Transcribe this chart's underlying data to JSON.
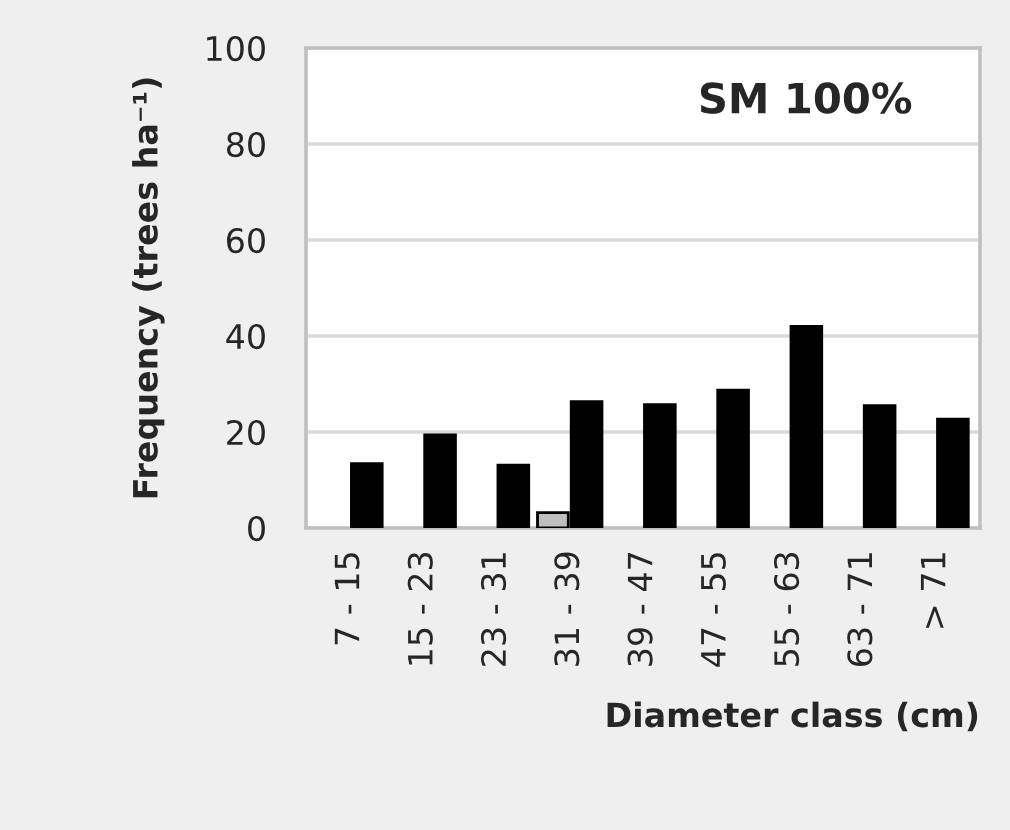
{
  "chart_data": {
    "type": "bar",
    "xlabel": "Diameter class (cm)",
    "ylabel": "Frequency (trees ha⁻¹)",
    "annotations": [
      "SM 100%"
    ],
    "categories": [
      "7 - 15",
      "15 - 23",
      "23 - 31",
      "31 - 39",
      "39 - 47",
      "47 - 55",
      "55 - 63",
      "63 - 71",
      "> 71"
    ],
    "series": [
      {
        "color": "#bfbfbf",
        "values": [
          null,
          null,
          null,
          3.2,
          null,
          null,
          null,
          null,
          null
        ]
      },
      {
        "color": "#000000",
        "values": [
          13.4,
          19.4,
          13.1,
          26.3,
          25.7,
          28.7,
          42,
          25.5,
          22.7
        ]
      }
    ],
    "ylim": [
      0,
      100
    ],
    "yticks": [
      0,
      20,
      40,
      60,
      80,
      100
    ],
    "grid": "y",
    "legend": false
  }
}
